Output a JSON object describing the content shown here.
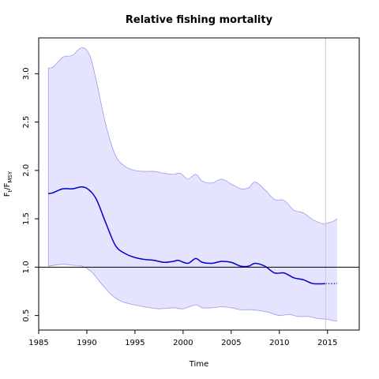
{
  "chart_data": {
    "type": "line",
    "title": "Relative fishing mortality",
    "xlabel": "Time",
    "ylabel": {
      "base": "F",
      "sub1": "t",
      "mid": "/F",
      "sub2": "MSY"
    },
    "xlim": [
      1985,
      2018.3
    ],
    "ylim": [
      0.35,
      3.37
    ],
    "xticks": [
      1985,
      1990,
      1995,
      2000,
      2005,
      2010,
      2015
    ],
    "yticks": [
      0.5,
      1.0,
      1.5,
      2.0,
      2.5,
      3.0
    ],
    "reference_line_y": 1.0,
    "vertical_marker_x": 2014.8,
    "colors": {
      "line": "#0000cc",
      "band_fill": "#e4e4ff",
      "band_edge": "#9a9aee",
      "reference": "#000000",
      "marker": "#c8c8c8"
    },
    "series": [
      {
        "role": "estimate",
        "x": [
          1986.0,
          1986.5,
          1987.5,
          1988.5,
          1989.5,
          1990.2,
          1991.0,
          1992.0,
          1993.0,
          1994.0,
          1995.0,
          1996.0,
          1997.0,
          1998.0,
          1999.0,
          1999.5,
          2000.5,
          2001.3,
          2002.0,
          2003.0,
          2004.0,
          2005.0,
          2006.0,
          2006.8,
          2007.5,
          2008.5,
          2009.5,
          2010.5,
          2011.5,
          2012.5,
          2013.5,
          2014.8
        ],
        "y": [
          1.76,
          1.77,
          1.81,
          1.81,
          1.83,
          1.8,
          1.7,
          1.45,
          1.22,
          1.14,
          1.1,
          1.08,
          1.07,
          1.05,
          1.06,
          1.07,
          1.04,
          1.09,
          1.05,
          1.04,
          1.06,
          1.05,
          1.01,
          1.01,
          1.04,
          1.01,
          0.94,
          0.94,
          0.89,
          0.87,
          0.83,
          0.83
        ]
      },
      {
        "role": "projection",
        "x": [
          2014.8,
          2016.0
        ],
        "y": [
          0.83,
          0.83
        ]
      },
      {
        "role": "upper_bound",
        "x": [
          1986.0,
          1986.5,
          1987.5,
          1988.5,
          1989.5,
          1990.3,
          1991.0,
          1992.0,
          1993.0,
          1994.0,
          1995.0,
          1996.0,
          1997.0,
          1998.0,
          1999.0,
          1999.7,
          2000.5,
          2001.3,
          2002.0,
          2003.0,
          2004.0,
          2005.0,
          2006.0,
          2006.8,
          2007.5,
          2008.5,
          2009.5,
          2010.5,
          2011.5,
          2012.5,
          2013.5,
          2014.5,
          2015.5,
          2016.0
        ],
        "y": [
          3.06,
          3.07,
          3.17,
          3.19,
          3.27,
          3.19,
          2.92,
          2.46,
          2.15,
          2.04,
          2.0,
          1.99,
          1.99,
          1.97,
          1.96,
          1.97,
          1.91,
          1.96,
          1.89,
          1.87,
          1.91,
          1.86,
          1.81,
          1.82,
          1.88,
          1.8,
          1.7,
          1.69,
          1.59,
          1.56,
          1.49,
          1.45,
          1.47,
          1.5
        ]
      },
      {
        "role": "lower_bound",
        "x": [
          1986.0,
          1987.5,
          1988.5,
          1989.5,
          1990.5,
          1991.5,
          1992.5,
          1993.5,
          1994.5,
          1996.0,
          1997.5,
          1999.0,
          2000.0,
          2001.3,
          2002.0,
          2003.0,
          2004.0,
          2005.0,
          2006.0,
          2007.0,
          2008.0,
          2009.0,
          2010.0,
          2011.0,
          2012.0,
          2013.0,
          2014.0,
          2015.0,
          2016.0
        ],
        "y": [
          1.01,
          1.03,
          1.02,
          1.01,
          0.95,
          0.83,
          0.72,
          0.65,
          0.62,
          0.59,
          0.57,
          0.58,
          0.57,
          0.61,
          0.58,
          0.58,
          0.59,
          0.58,
          0.56,
          0.56,
          0.55,
          0.53,
          0.5,
          0.51,
          0.49,
          0.49,
          0.47,
          0.46,
          0.44
        ]
      }
    ]
  }
}
